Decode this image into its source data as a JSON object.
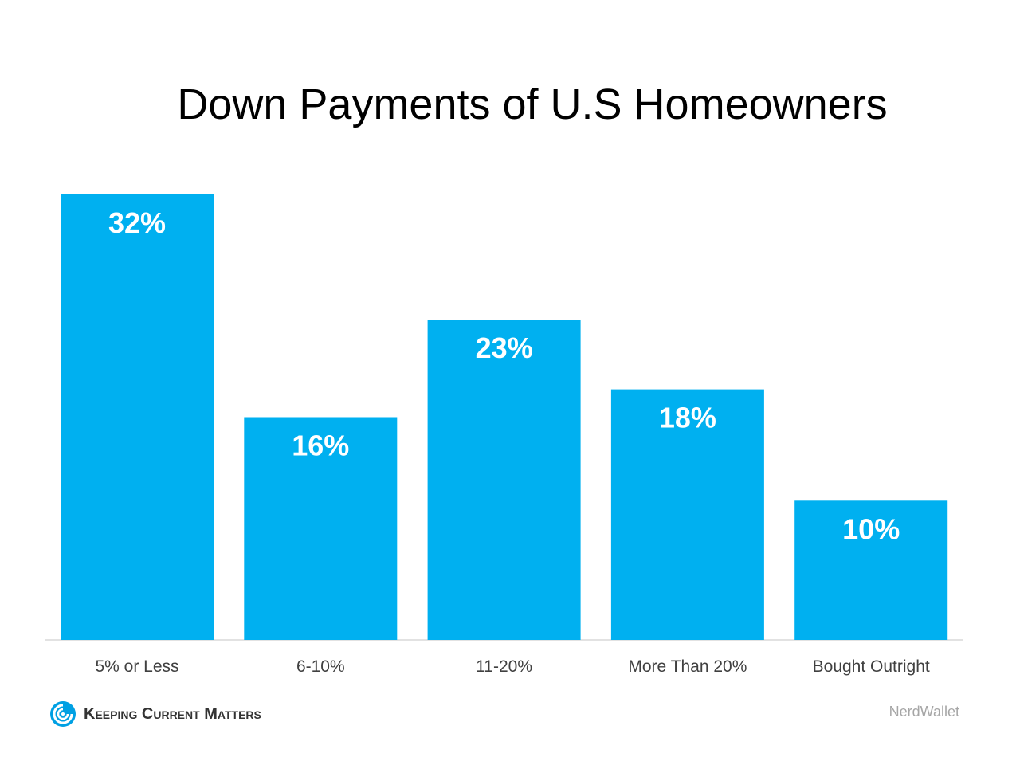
{
  "chart_data": {
    "type": "bar",
    "title": "Down Payments of U.S Homeowners",
    "categories": [
      "5% or Less",
      "6-10%",
      "11-20%",
      "More Than 20%",
      "Bought Outright"
    ],
    "values": [
      32,
      16,
      23,
      18,
      10
    ],
    "value_labels": [
      "32%",
      "16%",
      "23%",
      "18%",
      "10%"
    ],
    "unit": "%",
    "ylim": [
      0,
      34.3
    ],
    "grid": false,
    "legend": "none",
    "bar_color": "#00b0f0",
    "value_label_color": "#ffffff"
  },
  "branding": {
    "logo_text": "Keeping Current Matters",
    "logo_icon": "kcm-swirl-icon",
    "logo_color": "#00a0e3"
  },
  "source": "NerdWallet"
}
